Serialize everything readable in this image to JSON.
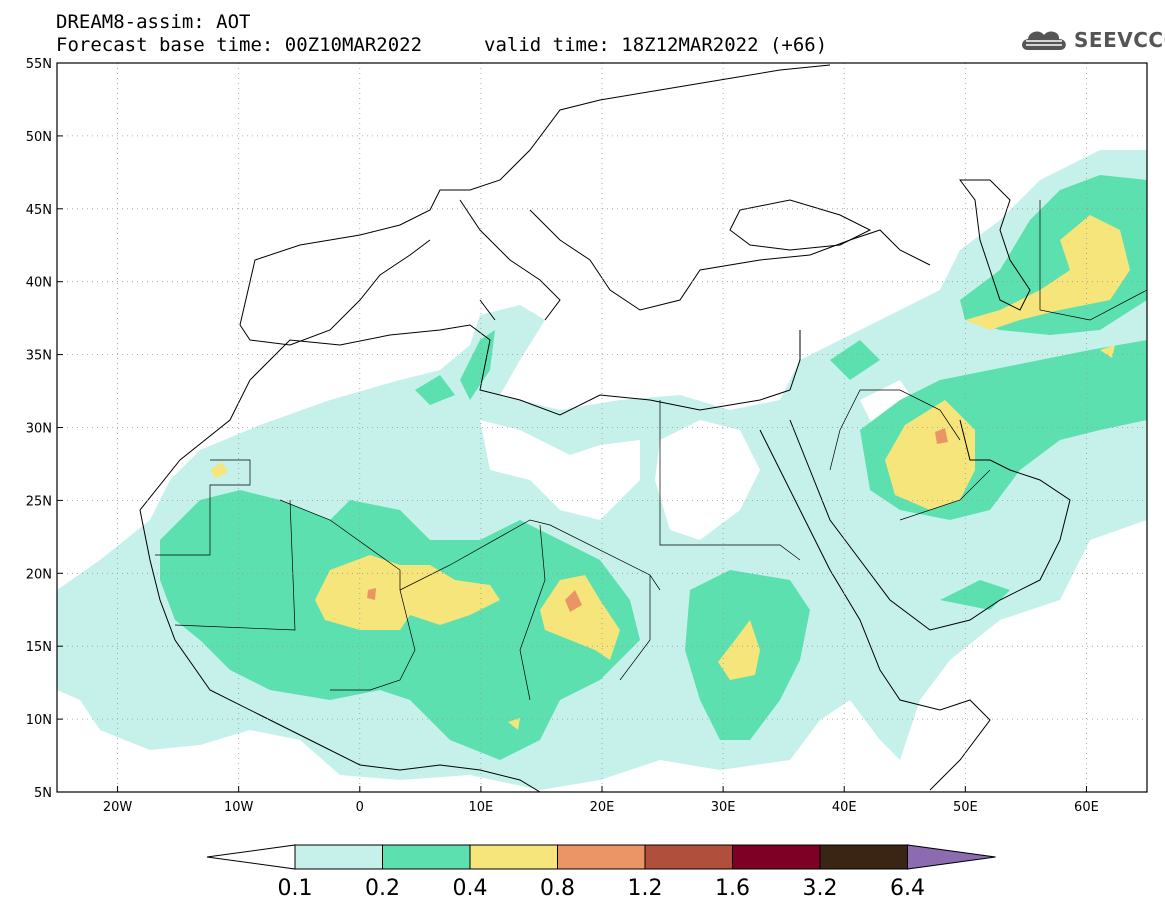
{
  "header": {
    "title": "DREAM8-assim: AOT",
    "base_time": "Forecast base time: 00Z10MAR2022",
    "valid_time": "valid time: 18Z12MAR2022 (+66)",
    "logo_text": "SEEVCCC"
  },
  "map": {
    "lon_range": [
      -25,
      65
    ],
    "lat_range": [
      5,
      55
    ],
    "lat_ticks": [
      {
        "v": 55,
        "label": "55N"
      },
      {
        "v": 50,
        "label": "50N"
      },
      {
        "v": 45,
        "label": "45N"
      },
      {
        "v": 40,
        "label": "40N"
      },
      {
        "v": 35,
        "label": "35N"
      },
      {
        "v": 30,
        "label": "30N"
      },
      {
        "v": 25,
        "label": "25N"
      },
      {
        "v": 20,
        "label": "20N"
      },
      {
        "v": 15,
        "label": "15N"
      },
      {
        "v": 10,
        "label": "10N"
      },
      {
        "v": 5,
        "label": "5N"
      }
    ],
    "lon_ticks": [
      {
        "v": -20,
        "label": "20W"
      },
      {
        "v": -10,
        "label": "10W"
      },
      {
        "v": 0,
        "label": "0"
      },
      {
        "v": 10,
        "label": "10E"
      },
      {
        "v": 20,
        "label": "20E"
      },
      {
        "v": 30,
        "label": "30E"
      },
      {
        "v": 40,
        "label": "40E"
      },
      {
        "v": 50,
        "label": "50E"
      },
      {
        "v": 60,
        "label": "60E"
      }
    ],
    "grid": "dotted"
  },
  "colorbar": {
    "labels": [
      "0.1",
      "0.2",
      "0.4",
      "0.8",
      "1.2",
      "1.6",
      "3.2",
      "6.4"
    ],
    "colors": [
      "#ffffff",
      "#c5f1ea",
      "#5ce0b0",
      "#f5e57a",
      "#eb9566",
      "#b04f3b",
      "#7f0025",
      "#3a2414",
      "#8c6bb0"
    ]
  },
  "colors": {
    "aot_0_1": "#c5f1ea",
    "aot_0_2": "#5ce0b0",
    "aot_0_4": "#f5e57a",
    "aot_0_8": "#eb9566"
  }
}
